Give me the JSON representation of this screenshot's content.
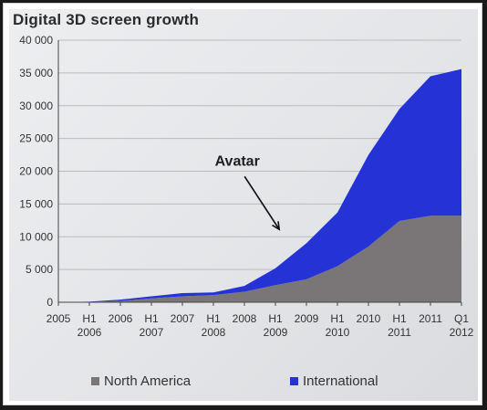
{
  "chart_data": {
    "type": "area",
    "title": "Digital 3D screen growth",
    "xlabel": "",
    "ylabel": "",
    "stacked": true,
    "x_labels": [
      [
        "2005",
        ""
      ],
      [
        "H1",
        "2006"
      ],
      [
        "2006",
        ""
      ],
      [
        "H1",
        "2007"
      ],
      [
        "2007",
        ""
      ],
      [
        "H1",
        "2008"
      ],
      [
        "2008",
        ""
      ],
      [
        "H1",
        "2009"
      ],
      [
        "2009",
        ""
      ],
      [
        "H1",
        "2010"
      ],
      [
        "2010",
        ""
      ],
      [
        "H1",
        "2011"
      ],
      [
        "2011",
        ""
      ],
      [
        "Q1",
        "2012"
      ]
    ],
    "y_ticks": [
      "0",
      "5 000",
      "10 000",
      "15 000",
      "20 000",
      "25 000",
      "30 000",
      "35 000",
      "40 000"
    ],
    "ylim": [
      0,
      40000
    ],
    "grid": true,
    "series": [
      {
        "name": "North America",
        "color": "#7a7677",
        "values": [
          0,
          50,
          200,
          600,
          900,
          1100,
          1600,
          2600,
          3500,
          5500,
          8500,
          12400,
          13200,
          13200
        ]
      },
      {
        "name": "International",
        "color": "#2533d6",
        "values": [
          0,
          30,
          200,
          300,
          500,
          400,
          900,
          2600,
          5500,
          8200,
          14000,
          17100,
          21300,
          22400
        ]
      }
    ],
    "annotation": {
      "text": "Avatar",
      "x_index": 7.3,
      "y_value": 10000
    },
    "legend_position": "bottom"
  }
}
